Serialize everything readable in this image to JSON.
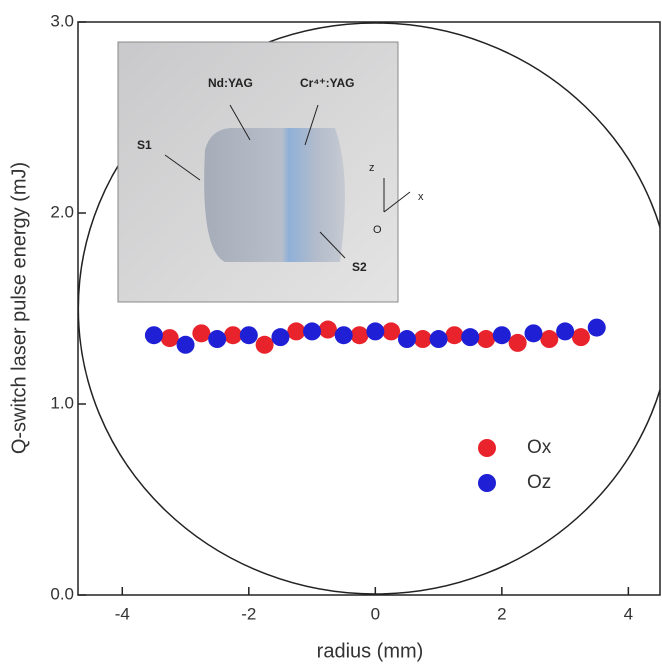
{
  "chart_data": {
    "type": "scatter",
    "x_label": "radius (mm)",
    "y_label": "Q-switch laser pulse energy (mJ)",
    "xlim": [
      -4.7,
      4.5
    ],
    "ylim": [
      0,
      3
    ],
    "xticks": [
      -4,
      -2,
      0,
      2,
      4
    ],
    "yticks": [
      {
        "value": 0,
        "label": "0.0"
      },
      {
        "value": 1,
        "label": "1.0"
      },
      {
        "value": 2,
        "label": "2.0"
      },
      {
        "value": 3,
        "label": "3.0"
      }
    ],
    "legend_position": "lower right",
    "series": [
      {
        "name": "Ox",
        "color": "#e8232b",
        "x": [
          -3.25,
          -2.75,
          -2.25,
          -1.75,
          -1.25,
          -0.75,
          -0.25,
          0.25,
          0.75,
          1.25,
          1.75,
          2.25,
          2.75,
          3.25
        ],
        "values": [
          1.345,
          1.37,
          1.36,
          1.31,
          1.38,
          1.39,
          1.36,
          1.38,
          1.34,
          1.36,
          1.34,
          1.32,
          1.34,
          1.35
        ]
      },
      {
        "name": "Oz",
        "color": "#1f1fd6",
        "x": [
          -3.5,
          -3.0,
          -2.5,
          -2.0,
          -1.5,
          -1.0,
          -0.5,
          0,
          0.5,
          1.0,
          1.5,
          2.0,
          2.5,
          3.0,
          3.5
        ],
        "values": [
          1.36,
          1.31,
          1.34,
          1.36,
          1.35,
          1.38,
          1.36,
          1.38,
          1.34,
          1.34,
          1.35,
          1.36,
          1.37,
          1.38,
          1.4
        ]
      }
    ],
    "inset_labels": [
      "Nd:YAG",
      "Cr⁴⁺:YAG",
      "S1",
      "S2",
      "z",
      "x",
      "O"
    ]
  }
}
